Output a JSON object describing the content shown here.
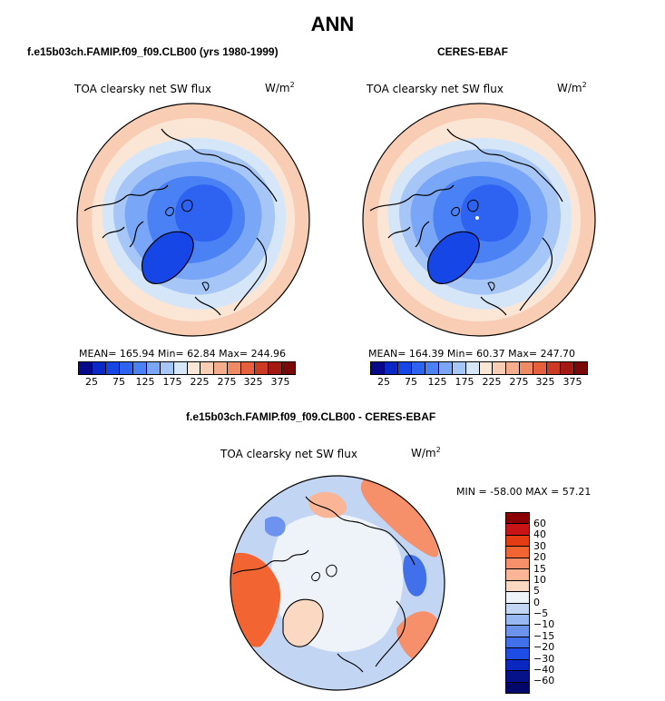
{
  "title": "ANN",
  "panels": {
    "model": {
      "subtitle": "f.e15b03ch.FAMIP.f09_f09.CLB00 (yrs 1980-1999)",
      "variable": "TOA clearsky net SW flux",
      "units": "W/m",
      "units_exp": "2",
      "stats": "MEAN= 165.94   Min= 62.84   Max= 244.96"
    },
    "obs": {
      "subtitle": "CERES-EBAF",
      "variable": "TOA clearsky net SW flux",
      "units": "W/m",
      "units_exp": "2",
      "stats": "MEAN= 164.39   Min= 60.37   Max= 247.70"
    },
    "diff": {
      "subtitle": "f.e15b03ch.FAMIP.f09_f09.CLB00 - CERES-EBAF",
      "variable": "TOA clearsky net SW flux",
      "units": "W/m",
      "units_exp": "2",
      "stats": "MIN = -58.00 MAX =  57.21"
    }
  },
  "chart_data": [
    {
      "type": "heatmap",
      "projection": "north-polar-stereographic",
      "title": "TOA clearsky net SW flux",
      "units": "W/m2",
      "source": "f.e15b03ch.FAMIP.f09_f09.CLB00 (yrs 1980-1999)",
      "mean": 165.94,
      "min": 62.84,
      "max": 244.96,
      "colorbar_levels": [
        25,
        50,
        75,
        100,
        125,
        150,
        175,
        200,
        225,
        250,
        275,
        300,
        325,
        350,
        375
      ],
      "colorbar_tick_labels": [
        "25",
        "75",
        "125",
        "175",
        "225",
        "275",
        "325",
        "375"
      ]
    },
    {
      "type": "heatmap",
      "projection": "north-polar-stereographic",
      "title": "TOA clearsky net SW flux",
      "units": "W/m2",
      "source": "CERES-EBAF",
      "mean": 164.39,
      "min": 60.37,
      "max": 247.7,
      "colorbar_levels": [
        25,
        50,
        75,
        100,
        125,
        150,
        175,
        200,
        225,
        250,
        275,
        300,
        325,
        350,
        375
      ],
      "colorbar_tick_labels": [
        "25",
        "75",
        "125",
        "175",
        "225",
        "275",
        "325",
        "375"
      ]
    },
    {
      "type": "heatmap",
      "projection": "north-polar-stereographic",
      "title": "TOA clearsky net SW flux",
      "units": "W/m2",
      "source": "f.e15b03ch.FAMIP.f09_f09.CLB00 - CERES-EBAF",
      "min": -58.0,
      "max": 57.21,
      "colorbar_levels": [
        60,
        40,
        30,
        20,
        15,
        10,
        5,
        0,
        -5,
        -10,
        -15,
        -20,
        -30,
        -40,
        -60
      ],
      "colorbar_tick_labels": [
        "60",
        "40",
        "30",
        "20",
        "15",
        "10",
        "5",
        "0",
        "−5",
        "−10",
        "−15",
        "−20",
        "−30",
        "−40",
        "−60"
      ]
    }
  ],
  "colors": {
    "abs_scale": [
      "#08088a",
      "#0a28c8",
      "#1646e6",
      "#2e62f0",
      "#4a82f5",
      "#7aa6f7",
      "#a6c6f7",
      "#d6e6f9",
      "#fbe6d6",
      "#f9ccb4",
      "#f6ad8c",
      "#f08a62",
      "#e6603e",
      "#cc3a22",
      "#a41a12",
      "#7a0a0a"
    ],
    "diff_scale": [
      "#8b0000",
      "#c81414",
      "#e63c14",
      "#f26432",
      "#f6906a",
      "#f9b596",
      "#fbd8c2",
      "#eef3f9",
      "#c2d6f4",
      "#98b8f2",
      "#6c94ee",
      "#4270ea",
      "#1e4ce4",
      "#0a28c0",
      "#06128a",
      "#02086a"
    ]
  }
}
